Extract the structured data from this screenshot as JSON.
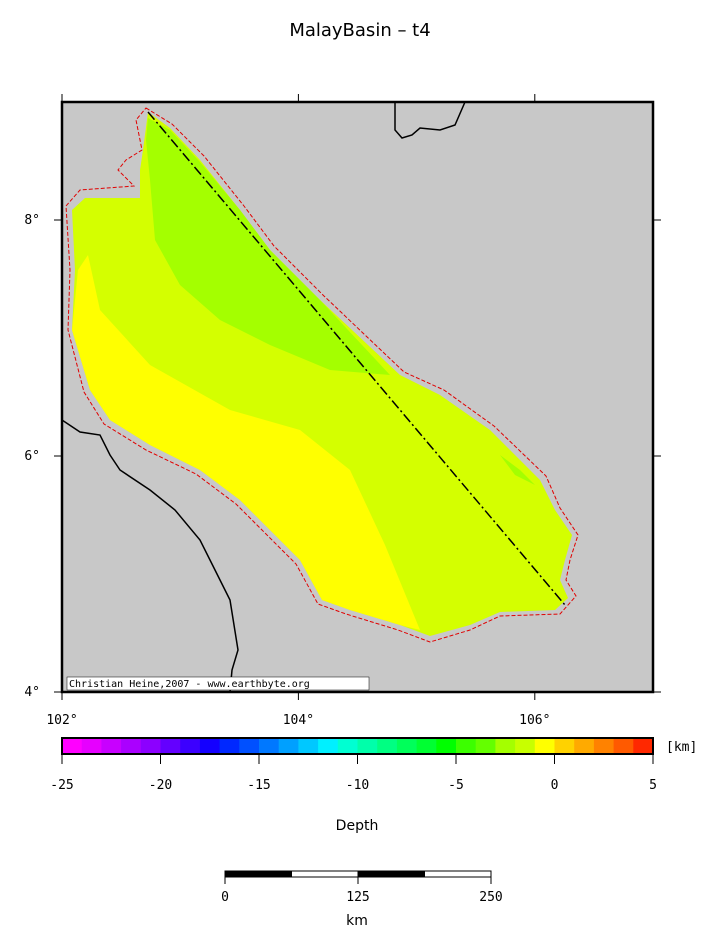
{
  "title": "MalayBasin – t4",
  "map": {
    "lonlim": [
      102,
      107
    ],
    "latlim": [
      4,
      9
    ],
    "lonticks": [
      {
        "value": 102,
        "label": "102°"
      },
      {
        "value": 104,
        "label": "104°"
      },
      {
        "value": 106,
        "label": "106°"
      }
    ],
    "latticks": [
      {
        "value": 4,
        "label": "4°"
      },
      {
        "value": 6,
        "label": "6°"
      },
      {
        "value": 8,
        "label": "8°"
      }
    ],
    "credit": "Christian Heine,2007 - www.earthbyte.org"
  },
  "colorbar": {
    "label": "Depth",
    "unit": "[km]",
    "lim": [
      -25,
      5
    ],
    "ticks": [
      -25,
      -20,
      -15,
      -10,
      -5,
      0,
      5
    ],
    "colors": [
      "#ff00ff",
      "#e600ff",
      "#c800ff",
      "#aa00ff",
      "#8c00ff",
      "#6400ff",
      "#3c00ff",
      "#1400ff",
      "#0028ff",
      "#0050ff",
      "#0078ff",
      "#00a0ff",
      "#00c8ff",
      "#00f0ff",
      "#00ffd2",
      "#00ffaa",
      "#00ff82",
      "#00ff5a",
      "#00ff32",
      "#00ff00",
      "#3cff00",
      "#64ff00",
      "#a4ff00",
      "#c8ff00",
      "#ffff00",
      "#ffd200",
      "#ffaa00",
      "#ff8200",
      "#ff5a00",
      "#ff2800"
    ]
  },
  "scalebar": {
    "lim": [
      0,
      250
    ],
    "ticks": [
      0,
      125,
      250
    ],
    "unit": "km"
  }
}
